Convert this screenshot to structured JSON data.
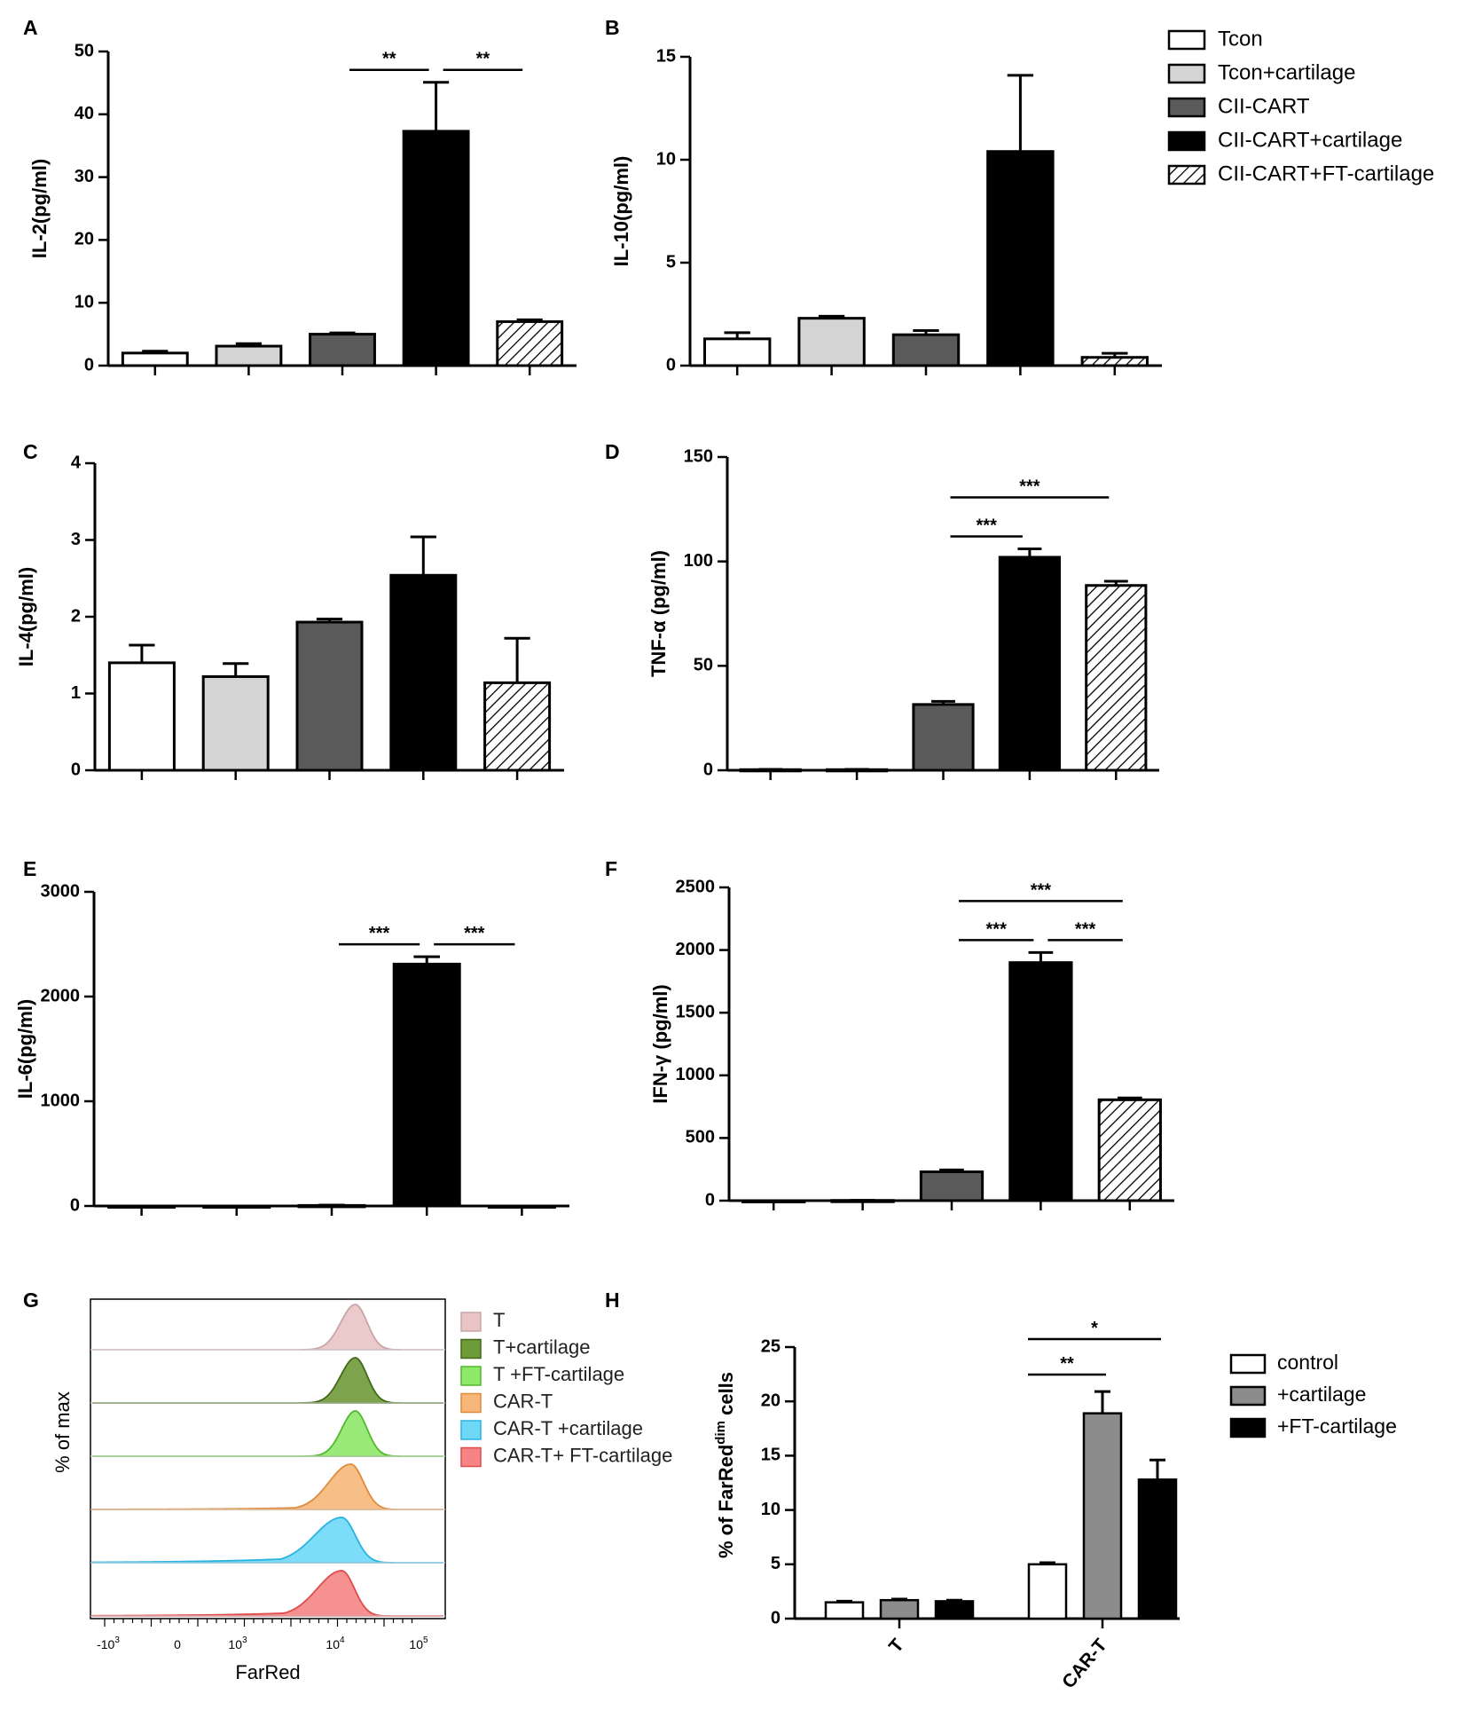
{
  "panel_letters": [
    "A",
    "B",
    "C",
    "D",
    "E",
    "F",
    "G",
    "H"
  ],
  "legend_main": {
    "items": [
      {
        "label": "Tcon",
        "style": "white"
      },
      {
        "label": "Tcon+cartilage",
        "style": "light"
      },
      {
        "label": "CII-CART",
        "style": "dark"
      },
      {
        "label": "CII-CART+cartilage",
        "style": "black"
      },
      {
        "label": "CII-CART+FT-cartilage",
        "style": "hatch"
      }
    ]
  },
  "legend_g": {
    "items": [
      {
        "label": "T",
        "color": "#e8c4c4",
        "edge": "#c9a5a5"
      },
      {
        "label": "T+cartilage",
        "color": "#6f9a3a",
        "edge": "#3f6b17"
      },
      {
        "label": "T +FT-cartilage",
        "color": "#8ee86a",
        "edge": "#52b82e"
      },
      {
        "label": "CAR-T",
        "color": "#f7b77a",
        "edge": "#e08b3b"
      },
      {
        "label": "CAR-T +cartilage",
        "color": "#6fd8f6",
        "edge": "#28b3e0"
      },
      {
        "label": "CAR-T+ FT-cartilage",
        "color": "#f58585",
        "edge": "#e04b4b"
      }
    ]
  },
  "legend_h": {
    "items": [
      {
        "label": "control",
        "style": "white"
      },
      {
        "label": "+cartilage",
        "style": "gray"
      },
      {
        "label": "+FT-cartilage",
        "style": "black"
      }
    ]
  },
  "colors": {
    "white": "#ffffff",
    "light": "#d4d4d4",
    "dark": "#5a5a5a",
    "black": "#000000",
    "gray": "#8c8c8c",
    "axis": "#000000"
  },
  "chart_data": [
    {
      "panel": "A",
      "type": "bar",
      "ylabel": "IL-2(pg/ml)",
      "categories": [
        "Tcon",
        "Tcon+cartilage",
        "CII-CART",
        "CII-CART+cartilage",
        "CII-CART+FT-cartilage"
      ],
      "values": [
        2.0,
        3.1,
        5.0,
        37.3,
        7.0
      ],
      "errors": [
        0.3,
        0.4,
        0.2,
        7.8,
        0.3
      ],
      "ylim": [
        0,
        50
      ],
      "yticks": [
        0,
        10,
        20,
        30,
        40,
        50
      ],
      "significance": [
        {
          "from": 2,
          "to": 3,
          "label": "**",
          "level": 1
        },
        {
          "from": 3,
          "to": 4,
          "label": "**",
          "level": 1
        }
      ]
    },
    {
      "panel": "B",
      "type": "bar",
      "ylabel": "IL-10(pg/ml)",
      "categories": [
        "Tcon",
        "Tcon+cartilage",
        "CII-CART",
        "CII-CART+cartilage",
        "CII-CART+FT-cartilage"
      ],
      "values": [
        1.3,
        2.3,
        1.5,
        10.4,
        0.4
      ],
      "errors": [
        0.3,
        0.1,
        0.2,
        3.7,
        0.2
      ],
      "ylim": [
        0,
        15
      ],
      "yticks": [
        0,
        5,
        10,
        15
      ],
      "significance": []
    },
    {
      "panel": "C",
      "type": "bar",
      "ylabel": "IL-4(pg/ml)",
      "categories": [
        "Tcon",
        "Tcon+cartilage",
        "CII-CART",
        "CII-CART+cartilage",
        "CII-CART+FT-cartilage"
      ],
      "values": [
        1.4,
        1.22,
        1.93,
        2.54,
        1.14
      ],
      "errors": [
        0.23,
        0.17,
        0.04,
        0.5,
        0.58
      ],
      "ylim": [
        0,
        4
      ],
      "yticks": [
        0,
        1,
        2,
        3,
        4
      ],
      "significance": []
    },
    {
      "panel": "D",
      "type": "bar",
      "ylabel": "TNF-α (pg/ml)",
      "categories": [
        "Tcon",
        "Tcon+cartilage",
        "CII-CART",
        "CII-CART+cartilage",
        "CII-CART+FT-cartilage"
      ],
      "values": [
        0.3,
        0.3,
        31.5,
        102,
        88.5
      ],
      "errors": [
        0.1,
        0.1,
        1.5,
        4.0,
        2.0
      ],
      "ylim": [
        0,
        150
      ],
      "yticks": [
        0,
        50,
        100,
        150
      ],
      "significance": [
        {
          "from": 2,
          "to": 3,
          "label": "***",
          "level": 1
        },
        {
          "from": 2,
          "to": 4,
          "label": "***",
          "level": 2
        }
      ]
    },
    {
      "panel": "E",
      "type": "bar",
      "ylabel": "IL-6(pg/ml)",
      "categories": [
        "Tcon",
        "Tcon+cartilage",
        "CII-CART",
        "CII-CART+cartilage",
        "CII-CART+FT-cartilage"
      ],
      "values": [
        0,
        0,
        5,
        2310,
        0
      ],
      "errors": [
        0,
        0,
        3,
        70,
        0
      ],
      "ylim": [
        0,
        3000
      ],
      "yticks": [
        0,
        1000,
        2000,
        3000
      ],
      "significance": [
        {
          "from": 2,
          "to": 3,
          "label": "***",
          "level": 1
        },
        {
          "from": 3,
          "to": 4,
          "label": "***",
          "level": 1
        }
      ]
    },
    {
      "panel": "F",
      "type": "bar",
      "ylabel": "IFN-γ (pg/ml)",
      "categories": [
        "Tcon",
        "Tcon+cartilage",
        "CII-CART",
        "CII-CART+cartilage",
        "CII-CART+FT-cartilage"
      ],
      "values": [
        0,
        2,
        230,
        1900,
        805
      ],
      "errors": [
        0,
        1,
        15,
        80,
        15
      ],
      "ylim": [
        0,
        2500
      ],
      "yticks": [
        0,
        500,
        1000,
        1500,
        2000,
        2500
      ],
      "significance": [
        {
          "from": 2,
          "to": 3,
          "label": "***",
          "level": 1
        },
        {
          "from": 3,
          "to": 4,
          "label": "***",
          "level": 1
        },
        {
          "from": 2,
          "to": 4,
          "label": "***",
          "level": 2
        }
      ]
    },
    {
      "panel": "G",
      "type": "histogram",
      "ylabel": "% of max",
      "xlabel": "FarRed",
      "xticks": [
        {
          "base": "-10",
          "exp": "3",
          "value": -1000
        },
        {
          "base": "0",
          "exp": "",
          "value": 0
        },
        {
          "base": "10",
          "exp": "3",
          "value": 1000
        },
        {
          "base": "10",
          "exp": "4",
          "value": 10000
        },
        {
          "base": "10",
          "exp": "5",
          "value": 100000
        }
      ],
      "series": [
        {
          "name": "T",
          "peak_log10": 4.3,
          "width_left": 0.16,
          "width_right": 0.13,
          "tail_left": 0.0
        },
        {
          "name": "T+cartilage",
          "peak_log10": 4.3,
          "width_left": 0.16,
          "width_right": 0.13,
          "tail_left": 0.0
        },
        {
          "name": "T +FT-cartilage",
          "peak_log10": 4.3,
          "width_left": 0.15,
          "width_right": 0.13,
          "tail_left": 0.0
        },
        {
          "name": "CAR-T",
          "peak_log10": 4.25,
          "width_left": 0.24,
          "width_right": 0.14,
          "tail_left": 0.25
        },
        {
          "name": "CAR-T +cartilage",
          "peak_log10": 4.15,
          "width_left": 0.3,
          "width_right": 0.15,
          "tail_left": 0.5
        },
        {
          "name": "CAR-T+ FT-cartilage",
          "peak_log10": 4.15,
          "width_left": 0.27,
          "width_right": 0.14,
          "tail_left": 0.4
        }
      ]
    },
    {
      "panel": "H",
      "type": "bar",
      "ylabel_main": "% of FarRed",
      "ylabel_sup": "dim",
      "ylabel_tail": " cells",
      "categories": [
        "T",
        "CAR-T"
      ],
      "series": [
        {
          "name": "control",
          "values": [
            1.5,
            5.0
          ],
          "errors": [
            0.1,
            0.15
          ]
        },
        {
          "name": "+cartilage",
          "values": [
            1.7,
            18.9
          ],
          "errors": [
            0.1,
            2.0
          ]
        },
        {
          "name": "+FT-cartilage",
          "values": [
            1.6,
            12.8
          ],
          "errors": [
            0.1,
            1.8
          ]
        }
      ],
      "ylim": [
        0,
        25
      ],
      "yticks": [
        0,
        5,
        10,
        15,
        20,
        25
      ],
      "significance": [
        {
          "group": 1,
          "from": 0,
          "to": 1,
          "label": "**",
          "level": 1
        },
        {
          "group": 1,
          "from": 0,
          "to": 2,
          "label": "*",
          "level": 2
        }
      ]
    }
  ]
}
